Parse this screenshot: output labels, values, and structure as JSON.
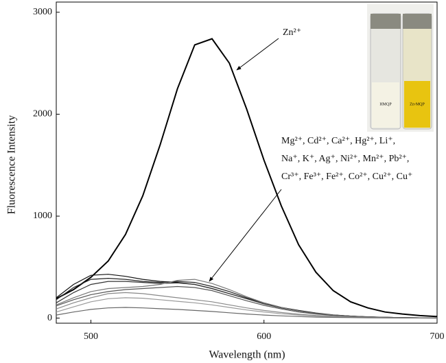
{
  "chart_data": {
    "type": "line",
    "x_label": "Wavelength (nm)",
    "y_label": "Fluorescence Intensity",
    "x": [
      480,
      490,
      500,
      510,
      520,
      530,
      540,
      550,
      560,
      570,
      580,
      590,
      600,
      610,
      620,
      630,
      640,
      650,
      660,
      670,
      680,
      690,
      700
    ],
    "series": [
      {
        "color": "#000000",
        "values": [
          190,
          280,
          400,
          560,
          820,
          1200,
          1700,
          2250,
          2680,
          2740,
          2500,
          2050,
          1550,
          1100,
          720,
          450,
          270,
          160,
          100,
          60,
          40,
          25,
          15
        ]
      },
      {
        "color": "#111111",
        "values": [
          200,
          330,
          420,
          430,
          410,
          380,
          360,
          350,
          330,
          290,
          240,
          190,
          140,
          100,
          70,
          45,
          30,
          20,
          12,
          8,
          5,
          3,
          2
        ]
      },
      {
        "color": "#222222",
        "values": [
          180,
          300,
          380,
          390,
          380,
          360,
          350,
          360,
          350,
          310,
          260,
          200,
          150,
          105,
          75,
          50,
          32,
          20,
          13,
          8,
          5,
          3,
          2
        ]
      },
      {
        "color": "#333333",
        "values": [
          150,
          250,
          330,
          360,
          360,
          350,
          340,
          345,
          330,
          290,
          240,
          190,
          140,
          100,
          70,
          45,
          30,
          19,
          12,
          8,
          5,
          3,
          2
        ]
      },
      {
        "color": "#777777",
        "values": [
          130,
          200,
          260,
          290,
          300,
          310,
          330,
          370,
          380,
          340,
          280,
          210,
          150,
          105,
          70,
          45,
          30,
          19,
          12,
          8,
          5,
          3,
          2
        ]
      },
      {
        "color": "#555555",
        "values": [
          120,
          180,
          230,
          260,
          280,
          290,
          300,
          310,
          300,
          270,
          220,
          170,
          125,
          90,
          60,
          40,
          26,
          17,
          11,
          7,
          4,
          3,
          2
        ]
      },
      {
        "color": "#888888",
        "values": [
          90,
          150,
          200,
          240,
          250,
          240,
          220,
          200,
          180,
          160,
          130,
          100,
          75,
          55,
          38,
          26,
          18,
          12,
          8,
          5,
          3,
          2,
          1
        ]
      },
      {
        "color": "#999999",
        "values": [
          60,
          110,
          160,
          190,
          200,
          195,
          180,
          165,
          150,
          130,
          105,
          80,
          60,
          43,
          30,
          20,
          14,
          9,
          6,
          4,
          3,
          2,
          1
        ]
      },
      {
        "color": "#666666",
        "values": [
          30,
          60,
          85,
          100,
          105,
          100,
          92,
          85,
          75,
          65,
          52,
          40,
          30,
          22,
          15,
          10,
          7,
          5,
          3,
          2,
          1,
          1,
          0
        ]
      }
    ],
    "xlim": [
      480,
      700
    ],
    "xticks": [
      500,
      600,
      700
    ],
    "ylim": [
      -50,
      3100
    ],
    "yticks": [
      0,
      1000,
      2000,
      3000
    ],
    "annotations": [
      "Zn²⁺",
      "Mg²⁺, Cd²⁺, Ca²⁺, Hg²⁺, Li⁺,",
      "Na⁺, K⁺, Ag⁺, Ni²⁺, Mn²⁺, Pb²⁺,",
      "Cr³⁺, Fe³⁺, Fe²⁺, Co²⁺, Cu²⁺, Cu⁺"
    ],
    "inset_labels": [
      "HMQP",
      "Zn-MQP"
    ]
  }
}
